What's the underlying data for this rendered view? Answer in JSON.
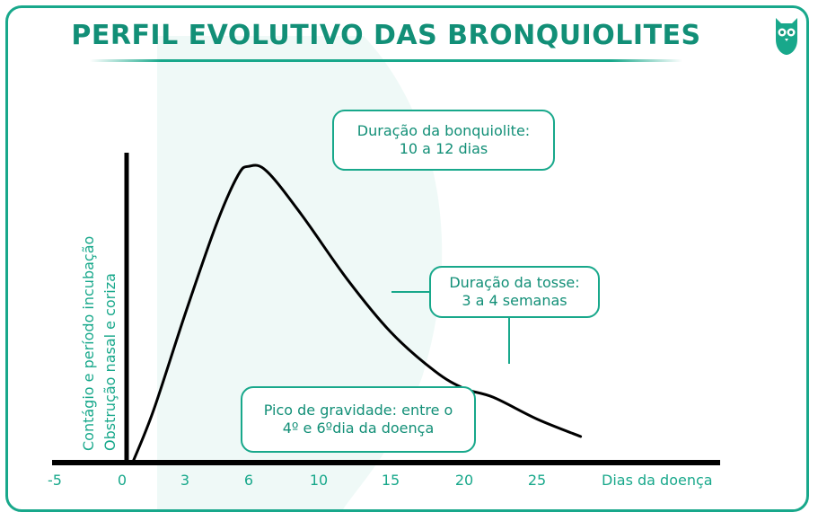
{
  "title": "PERFIL EVOLUTIVO DAS BRONQUIOLITES",
  "logo": "owl-logo",
  "colors": {
    "accent": "#18a88b",
    "accent_dark": "#128f77",
    "curve": "#000000"
  },
  "callouts": {
    "duration": {
      "line1": "Duração da bonquiolite:",
      "line2": "10 a 12 dias"
    },
    "cough": {
      "line1": "Duração da tosse:",
      "line2": "3 a 4 semanas"
    },
    "peak": {
      "line1": "Pico de gravidade: entre o",
      "line2": "4º e 6ºdia da doença"
    }
  },
  "chart_data": {
    "type": "line",
    "title": "PERFIL EVOLUTIVO DAS BRONQUIOLITES",
    "xlabel": "Dias da doença",
    "ylabel_lines": [
      "Contágio e período incubação",
      "Obstrução nasal e coriza"
    ],
    "x_ticks": [
      "-5",
      "0",
      "3",
      "6",
      "10",
      "15",
      "20",
      "25"
    ],
    "series": [
      {
        "x": [
          0.5,
          1.5,
          3,
          4.5,
          5.5,
          6,
          7,
          9,
          12,
          15,
          18,
          20,
          22,
          25,
          28
        ],
        "y": [
          0,
          12,
          34,
          55,
          66,
          68,
          67,
          57,
          42,
          30,
          21,
          17,
          15,
          10,
          6
        ]
      }
    ],
    "grid": false,
    "legend": "none"
  }
}
